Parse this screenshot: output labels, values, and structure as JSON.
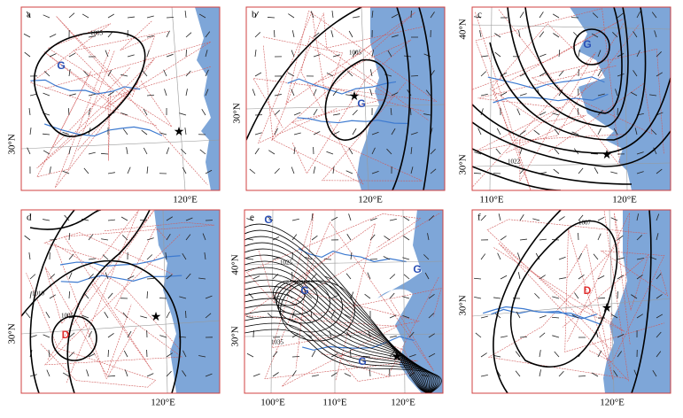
{
  "panels": [
    {
      "label": "a",
      "markers": [
        {
          "text": "G",
          "color": "#2a4fb5"
        }
      ],
      "isobars": [
        "1005"
      ],
      "lat_labels": [
        "30°N"
      ],
      "lon_labels": [
        "120°E"
      ]
    },
    {
      "label": "b",
      "markers": [
        {
          "text": "G",
          "color": "#2a4fb5"
        }
      ],
      "isobars": [
        "1005"
      ],
      "lat_labels": [
        "30°N"
      ],
      "lon_labels": [
        "120°E"
      ]
    },
    {
      "label": "c",
      "markers": [
        {
          "text": "G",
          "color": "#2a4fb5"
        }
      ],
      "isobars": [
        "1022"
      ],
      "lat_labels": [
        "40°N",
        "30°N"
      ],
      "lon_labels": [
        "110°E",
        "120°E"
      ]
    },
    {
      "label": "d",
      "markers": [
        {
          "text": "D",
          "color": "#e03030"
        }
      ],
      "isobars": [
        "1010",
        "1005"
      ],
      "lat_labels": [
        "30°N"
      ],
      "lon_labels": [
        "120°E"
      ]
    },
    {
      "label": "e",
      "markers": [
        {
          "text": "G",
          "color": "#2a4fb5"
        },
        {
          "text": "G",
          "color": "#2a4fb5"
        },
        {
          "text": "G",
          "color": "#2a4fb5"
        },
        {
          "text": "G",
          "color": "#2a4fb5"
        }
      ],
      "isobars": [
        "1025",
        "1035"
      ],
      "lat_labels": [
        "40°N",
        "30°N"
      ],
      "lon_labels": [
        "100°E",
        "110°E",
        "120°E"
      ]
    },
    {
      "label": "f",
      "markers": [
        {
          "text": "D",
          "color": "#e03030"
        }
      ],
      "isobars": [
        "1007"
      ],
      "lat_labels": [
        "30°N"
      ],
      "lon_labels": [
        "120°E"
      ]
    }
  ]
}
